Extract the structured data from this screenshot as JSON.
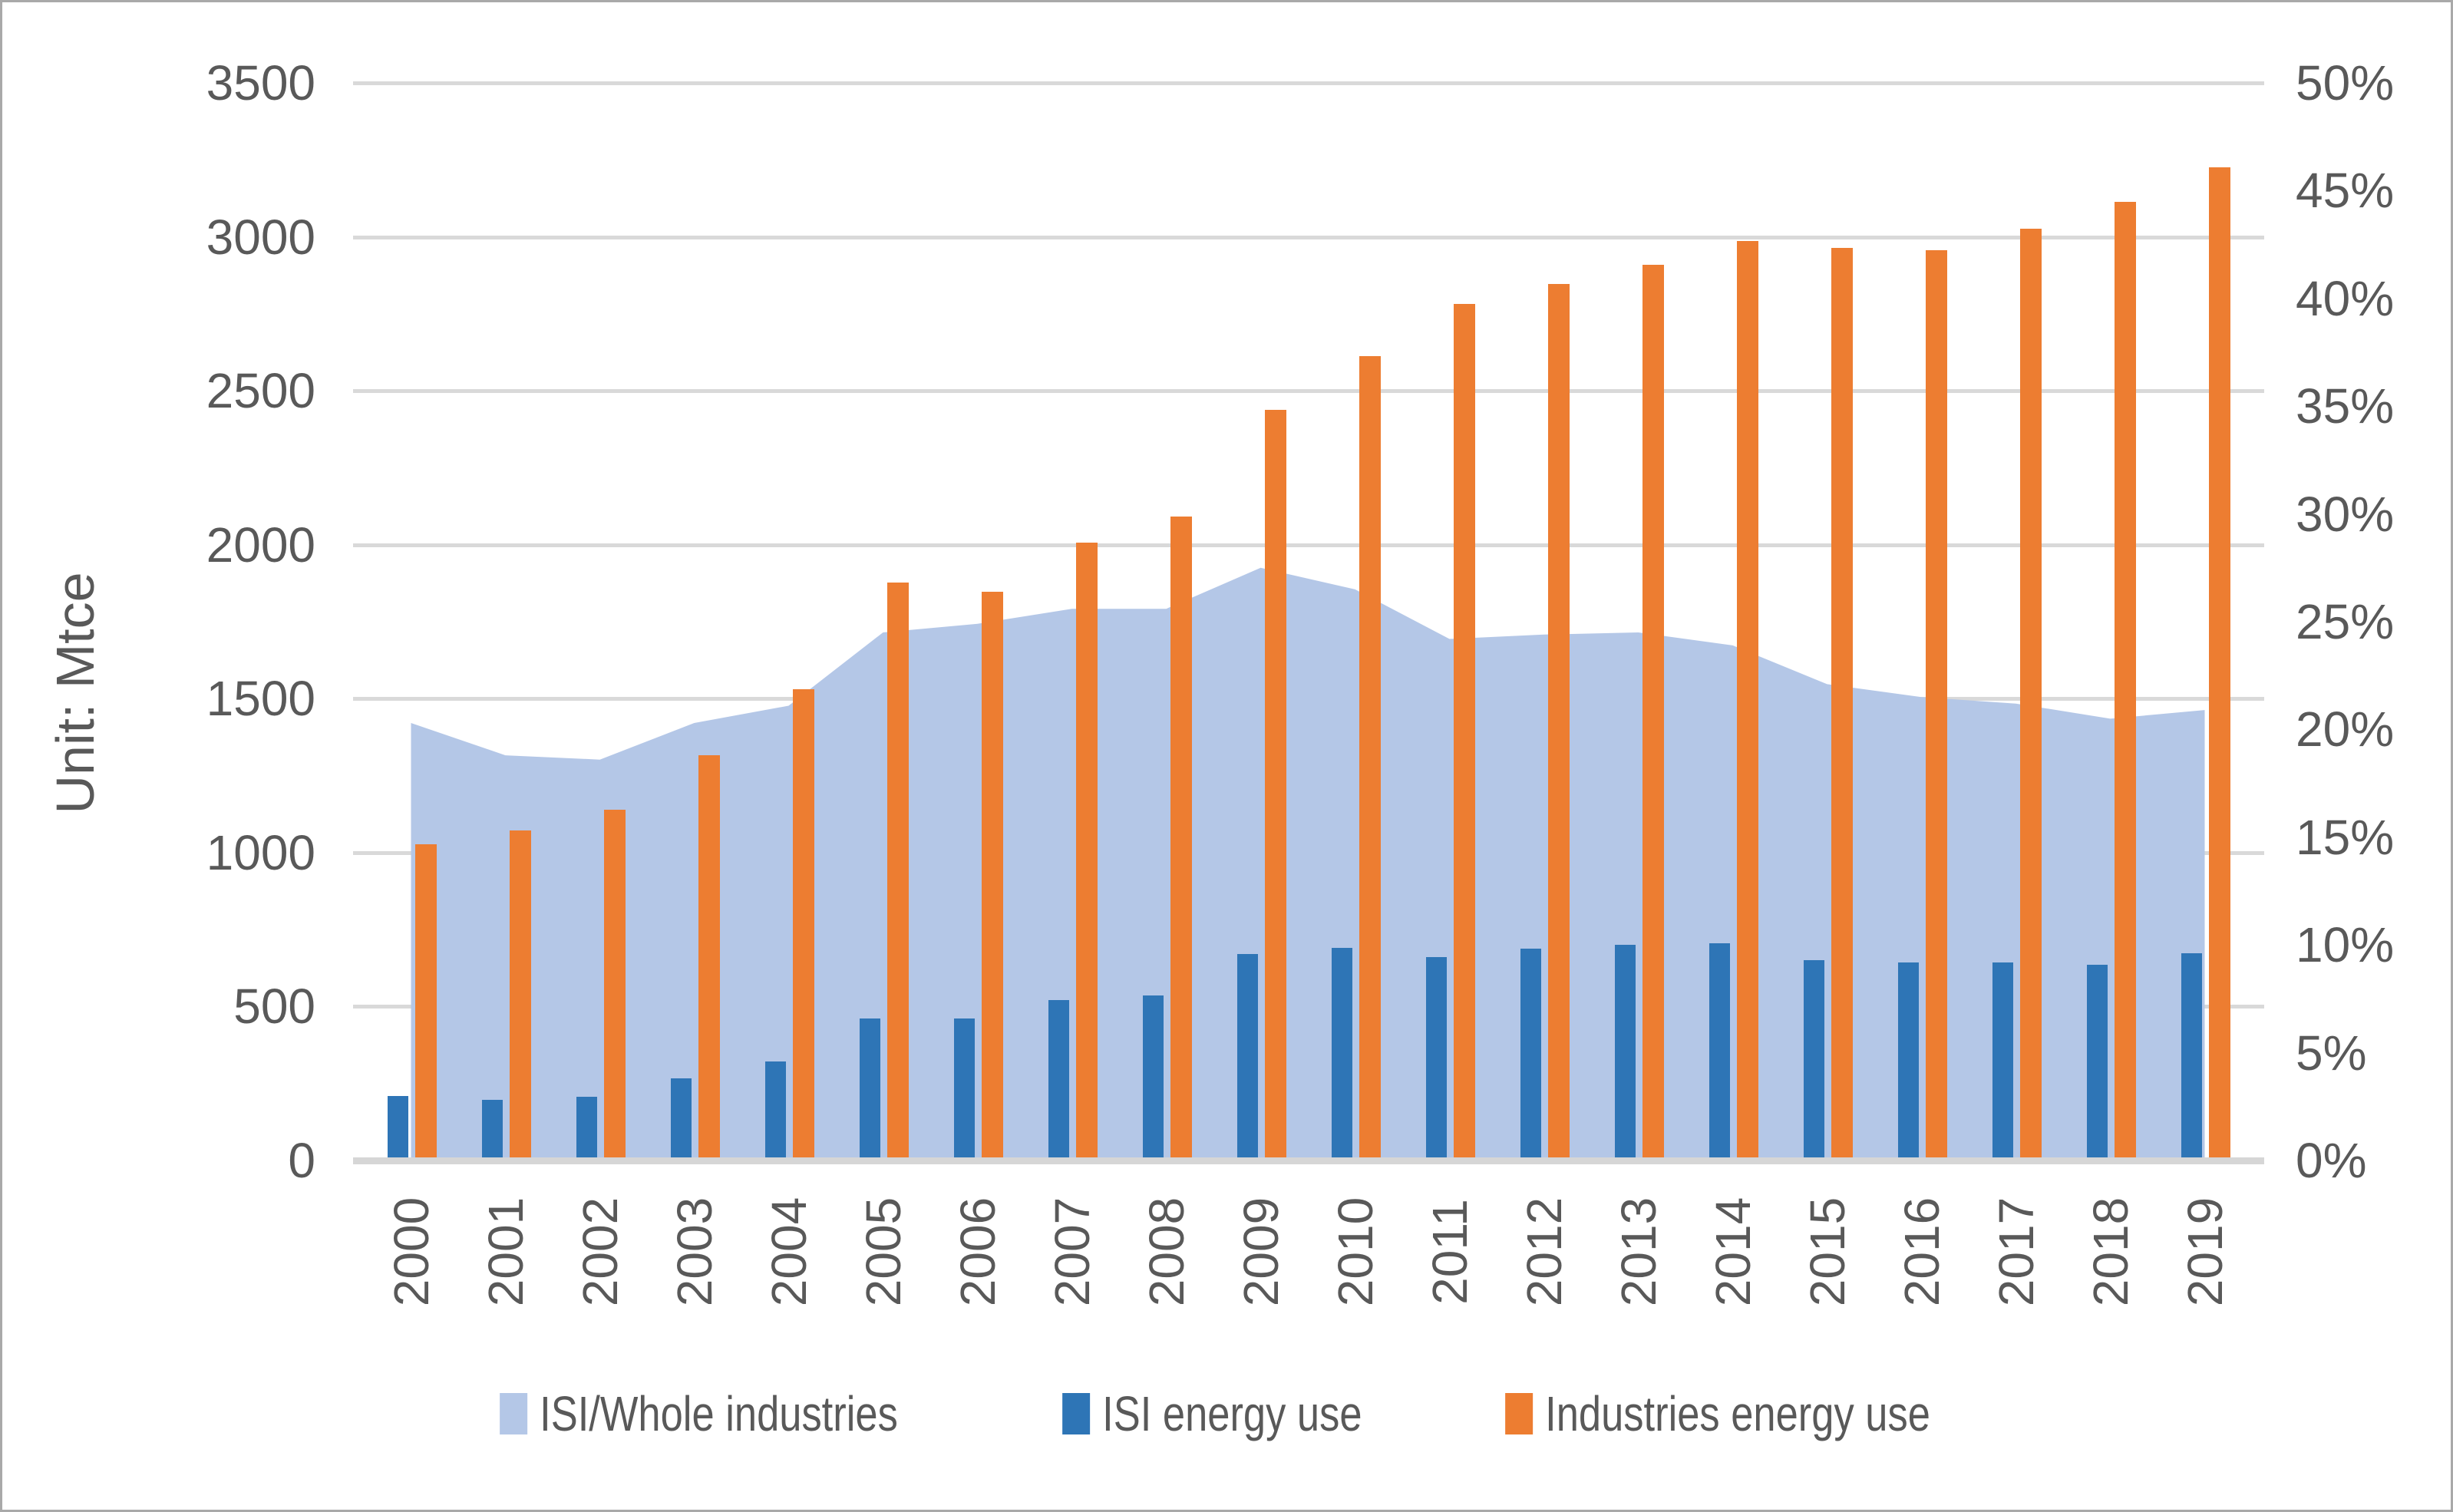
{
  "page": {
    "background": "#ffffff",
    "border_color": "#a9a9a9",
    "text_color": "#595959",
    "gridline_color": "#d9d9d9"
  },
  "unit_label": "Unit: Mtce",
  "chart_data": {
    "type": "combo-bar-area",
    "title": "",
    "categories": [
      "2000",
      "2001",
      "2002",
      "2003",
      "2004",
      "2005",
      "2006",
      "2007",
      "2008",
      "2009",
      "2010",
      "2011",
      "2012",
      "2013",
      "2014",
      "2015",
      "2016",
      "2017",
      "2018",
      "2019"
    ],
    "series": [
      {
        "name": "ISI/Whole industries",
        "type": "area",
        "axis": "right",
        "unit": "%",
        "color": "#b4c7e7",
        "values": [
          20.3,
          18.8,
          18.6,
          20.3,
          21.1,
          24.5,
          24.9,
          25.6,
          25.6,
          27.5,
          26.5,
          24.2,
          24.4,
          24.5,
          23.9,
          22.1,
          21.5,
          21.2,
          20.5,
          20.9
        ]
      },
      {
        "name": "ISI energy use",
        "type": "bar",
        "axis": "left",
        "unit": "Mtce",
        "color": "#2e75b6",
        "values": [
          210,
          198,
          206,
          267,
          322,
          460,
          461,
          521,
          537,
          670,
          690,
          661,
          687,
          700,
          706,
          650,
          643,
          642,
          636,
          673
        ]
      },
      {
        "name": "Industries energy use",
        "type": "bar",
        "axis": "left",
        "unit": "Mtce",
        "color": "#ed7d31",
        "values": [
          1027,
          1071,
          1138,
          1316,
          1530,
          1877,
          1847,
          2006,
          2092,
          2438,
          2612,
          2781,
          2848,
          2909,
          2987,
          2963,
          2957,
          3027,
          3113,
          3225
        ]
      }
    ],
    "left_axis": {
      "label": "Unit: Mtce",
      "min": 0,
      "max": 3500,
      "step": 500,
      "ticks": [
        "0",
        "500",
        "1000",
        "1500",
        "2000",
        "2500",
        "3000",
        "3500"
      ]
    },
    "right_axis": {
      "min": 0,
      "max": 50,
      "step": 5,
      "ticks": [
        "0%",
        "5%",
        "10%",
        "15%",
        "20%",
        "25%",
        "30%",
        "35%",
        "40%",
        "45%",
        "50%"
      ],
      "mtce_per_percent": 70
    },
    "grid": true,
    "legend_position": "bottom",
    "legend": [
      "ISI/Whole industries",
      "ISI energy use",
      "Industries energy use"
    ]
  }
}
